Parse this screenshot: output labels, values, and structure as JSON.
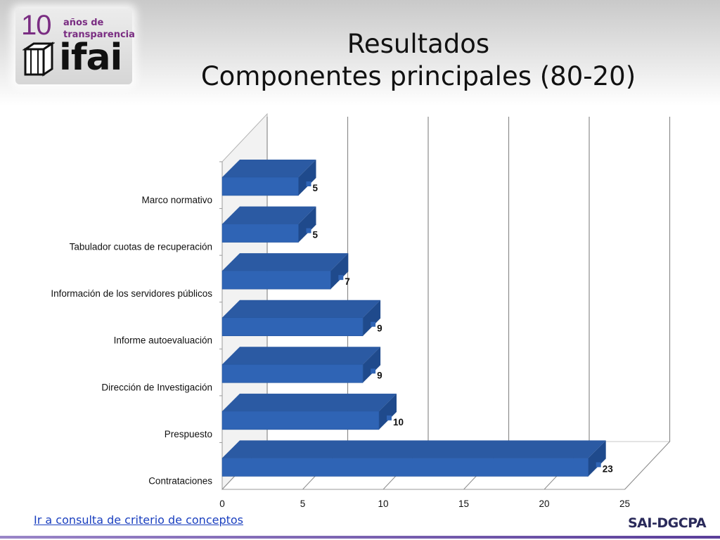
{
  "logo": {
    "number": "10",
    "line1": "años de",
    "line2": "transparencia",
    "word": "ifai"
  },
  "title": {
    "line1": "Resultados",
    "line2": "Componentes principales (80-20)"
  },
  "chart_data": {
    "type": "bar",
    "orientation": "horizontal",
    "style": "3d",
    "categories": [
      "Marco normativo",
      "Tabulador cuotas de recuperación",
      "Información de los servidores públicos",
      "Informe autoevaluación",
      "Dirección de Investigación",
      "Prespuesto",
      "Contrataciones"
    ],
    "values": [
      5,
      5,
      7,
      9,
      9,
      10,
      23
    ],
    "xlim": [
      0,
      25
    ],
    "xticks": [
      0,
      5,
      10,
      15,
      20,
      25
    ],
    "grid": true,
    "legend": "none",
    "bar_color": "#2f64b5"
  },
  "footer": {
    "link_text": "Ir a consulta de criterio de conceptos",
    "brand": "SAI-DGCPA"
  }
}
